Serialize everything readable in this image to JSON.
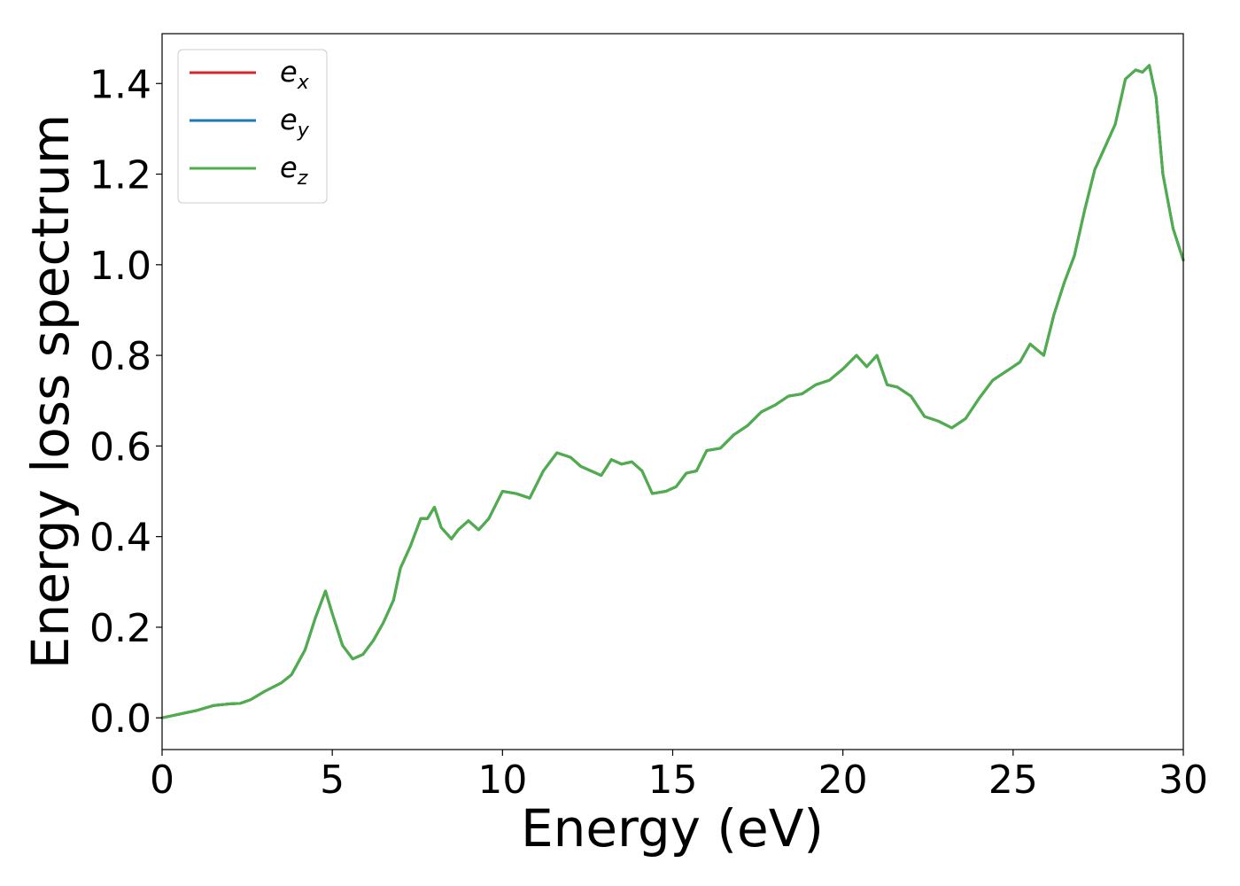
{
  "chart_data": {
    "type": "line",
    "xlabel": "Energy (eV)",
    "ylabel": "Energy loss spectrum",
    "xlim": [
      0,
      30
    ],
    "ylim": [
      -0.07,
      1.51
    ],
    "xticks": [
      0,
      5,
      10,
      15,
      20,
      25,
      30
    ],
    "xtick_labels": [
      "0",
      "5",
      "10",
      "15",
      "20",
      "25",
      "30"
    ],
    "yticks": [
      0.0,
      0.2,
      0.4,
      0.6,
      0.8,
      1.0,
      1.2,
      1.4
    ],
    "ytick_labels": [
      "0.0",
      "0.2",
      "0.4",
      "0.6",
      "0.8",
      "1.0",
      "1.2",
      "1.4"
    ],
    "grid": false,
    "legend_position": "top-left",
    "x": [
      0,
      0.5,
      1.0,
      1.5,
      2.0,
      2.3,
      2.6,
      3.0,
      3.5,
      3.8,
      4.2,
      4.5,
      4.8,
      5.0,
      5.3,
      5.6,
      5.9,
      6.2,
      6.5,
      6.8,
      7.0,
      7.3,
      7.6,
      7.8,
      8.0,
      8.2,
      8.5,
      8.7,
      9.0,
      9.3,
      9.6,
      10.0,
      10.4,
      10.8,
      11.2,
      11.6,
      12.0,
      12.3,
      12.6,
      12.9,
      13.2,
      13.5,
      13.8,
      14.1,
      14.4,
      14.8,
      15.1,
      15.4,
      15.7,
      16.0,
      16.4,
      16.8,
      17.2,
      17.6,
      18.0,
      18.4,
      18.8,
      19.2,
      19.6,
      20.0,
      20.4,
      20.7,
      21.0,
      21.3,
      21.6,
      22.0,
      22.4,
      22.8,
      23.2,
      23.6,
      24.0,
      24.4,
      24.8,
      25.2,
      25.5,
      25.9,
      26.2,
      26.5,
      26.8,
      27.1,
      27.4,
      27.7,
      28.0,
      28.3,
      28.6,
      28.8,
      29.0,
      29.2,
      29.4,
      29.7,
      30.0
    ],
    "series": [
      {
        "name": "e_x",
        "color": "#d62728",
        "values": [
          0.0,
          0.008,
          0.016,
          0.027,
          0.031,
          0.032,
          0.04,
          0.058,
          0.077,
          0.095,
          0.15,
          0.22,
          0.28,
          0.23,
          0.16,
          0.13,
          0.14,
          0.17,
          0.21,
          0.26,
          0.33,
          0.38,
          0.44,
          0.44,
          0.465,
          0.42,
          0.395,
          0.415,
          0.435,
          0.415,
          0.44,
          0.5,
          0.495,
          0.485,
          0.545,
          0.585,
          0.575,
          0.555,
          0.545,
          0.535,
          0.57,
          0.56,
          0.565,
          0.545,
          0.495,
          0.5,
          0.51,
          0.54,
          0.545,
          0.59,
          0.595,
          0.625,
          0.645,
          0.675,
          0.69,
          0.71,
          0.715,
          0.735,
          0.745,
          0.77,
          0.8,
          0.775,
          0.8,
          0.735,
          0.73,
          0.71,
          0.665,
          0.655,
          0.64,
          0.66,
          0.705,
          0.745,
          0.765,
          0.785,
          0.825,
          0.8,
          0.89,
          0.96,
          1.02,
          1.12,
          1.21,
          1.26,
          1.31,
          1.41,
          1.43,
          1.425,
          1.44,
          1.37,
          1.2,
          1.08,
          1.01
        ]
      },
      {
        "name": "e_y",
        "color": "#1f77b4",
        "values": [
          0.0,
          0.008,
          0.016,
          0.027,
          0.031,
          0.032,
          0.04,
          0.058,
          0.077,
          0.095,
          0.15,
          0.22,
          0.28,
          0.23,
          0.16,
          0.13,
          0.14,
          0.17,
          0.21,
          0.26,
          0.33,
          0.38,
          0.44,
          0.44,
          0.465,
          0.42,
          0.395,
          0.415,
          0.435,
          0.415,
          0.44,
          0.5,
          0.495,
          0.485,
          0.545,
          0.585,
          0.575,
          0.555,
          0.545,
          0.535,
          0.57,
          0.56,
          0.565,
          0.545,
          0.495,
          0.5,
          0.51,
          0.54,
          0.545,
          0.59,
          0.595,
          0.625,
          0.645,
          0.675,
          0.69,
          0.71,
          0.715,
          0.735,
          0.745,
          0.77,
          0.8,
          0.775,
          0.8,
          0.735,
          0.73,
          0.71,
          0.665,
          0.655,
          0.64,
          0.66,
          0.705,
          0.745,
          0.765,
          0.785,
          0.825,
          0.8,
          0.89,
          0.96,
          1.02,
          1.12,
          1.21,
          1.26,
          1.31,
          1.41,
          1.43,
          1.425,
          1.44,
          1.37,
          1.2,
          1.08,
          1.01
        ]
      },
      {
        "name": "e_z",
        "color": "#4daf4a",
        "values": [
          0.0,
          0.008,
          0.016,
          0.027,
          0.031,
          0.032,
          0.04,
          0.058,
          0.077,
          0.095,
          0.15,
          0.22,
          0.28,
          0.23,
          0.16,
          0.13,
          0.14,
          0.17,
          0.21,
          0.26,
          0.33,
          0.38,
          0.44,
          0.44,
          0.465,
          0.42,
          0.395,
          0.415,
          0.435,
          0.415,
          0.44,
          0.5,
          0.495,
          0.485,
          0.545,
          0.585,
          0.575,
          0.555,
          0.545,
          0.535,
          0.57,
          0.56,
          0.565,
          0.545,
          0.495,
          0.5,
          0.51,
          0.54,
          0.545,
          0.59,
          0.595,
          0.625,
          0.645,
          0.675,
          0.69,
          0.71,
          0.715,
          0.735,
          0.745,
          0.77,
          0.8,
          0.775,
          0.8,
          0.735,
          0.73,
          0.71,
          0.665,
          0.655,
          0.64,
          0.66,
          0.705,
          0.745,
          0.765,
          0.785,
          0.825,
          0.8,
          0.89,
          0.96,
          1.02,
          1.12,
          1.21,
          1.26,
          1.31,
          1.41,
          1.43,
          1.425,
          1.44,
          1.37,
          1.2,
          1.08,
          1.01
        ]
      }
    ],
    "legend": [
      {
        "base": "e",
        "sub": "x",
        "color": "#d62728"
      },
      {
        "base": "e",
        "sub": "y",
        "color": "#1f77b4"
      },
      {
        "base": "e",
        "sub": "z",
        "color": "#4daf4a"
      }
    ]
  }
}
